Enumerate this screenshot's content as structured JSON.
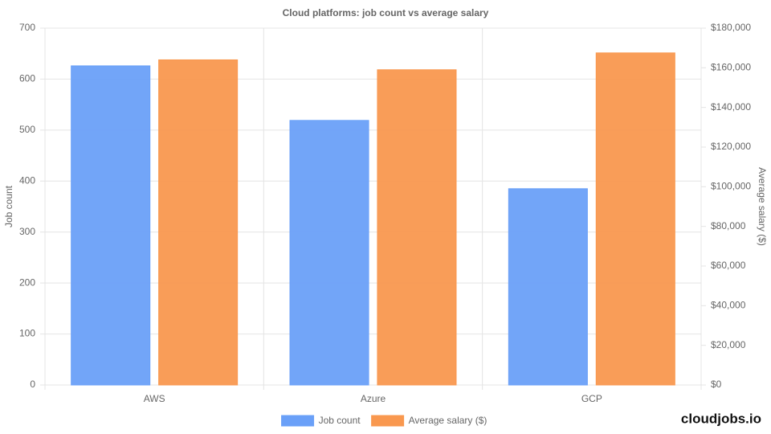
{
  "chart_data": {
    "type": "bar",
    "title": "Cloud platforms: job count vs average salary",
    "categories": [
      "AWS",
      "Azure",
      "GCP"
    ],
    "series": [
      {
        "name": "Job count",
        "color": "#6aa0f8",
        "values": [
          626,
          519,
          385
        ]
      },
      {
        "name": "Average salary ($)",
        "color": "#f9984f",
        "axis": "y2",
        "values": [
          164000,
          159000,
          167500
        ]
      }
    ],
    "ylabel": "Job count",
    "y2label": "Average salary ($)",
    "ylim": [
      0,
      700
    ],
    "yticks": [
      0,
      100,
      200,
      300,
      400,
      500,
      600,
      700
    ],
    "y2lim": [
      0,
      180000
    ],
    "y2ticks": [
      {
        "value": 0,
        "label": "$0"
      },
      {
        "value": 20000,
        "label": "$20,000"
      },
      {
        "value": 40000,
        "label": "$40,000"
      },
      {
        "value": 60000,
        "label": "$60,000"
      },
      {
        "value": 80000,
        "label": "$80,000"
      },
      {
        "value": 100000,
        "label": "$100,000"
      },
      {
        "value": 120000,
        "label": "$120,000"
      },
      {
        "value": 140000,
        "label": "$140,000"
      },
      {
        "value": 160000,
        "label": "$160,000"
      },
      {
        "value": 180000,
        "label": "$180,000"
      }
    ],
    "grid": true,
    "legend": "bottom"
  },
  "brand": "cloudjobs.io"
}
